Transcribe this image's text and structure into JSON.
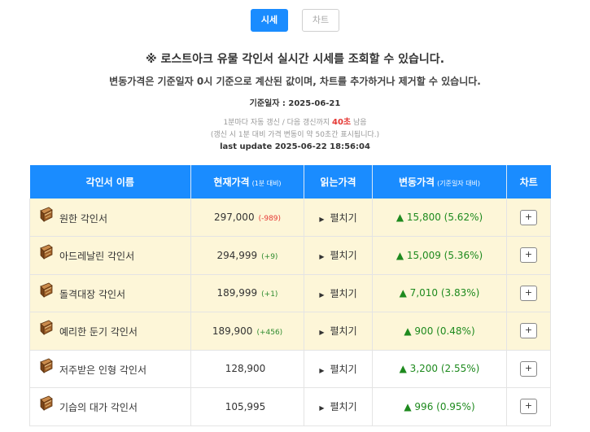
{
  "tabs": [
    {
      "label": "시세",
      "active": true
    },
    {
      "label": "차트",
      "active": false
    }
  ],
  "headline": "※ 로스트아크 유물 각인서 실시간 시세를 조회할 수 있습니다.",
  "subline": "변동가격은 기준일자 0시 기준으로 계산된 값이며, 차트를 추가하거나 제거할 수 있습니다.",
  "ref_date": "기준일자 : 2025-06-21",
  "refresh": {
    "prefix": "1분마다 자동 갱신 / 다음 갱신까지 ",
    "countdown": "40초",
    "suffix": " 남음",
    "note": "(갱신 시 1분 대비 가격 변동이 약 50초간 표시됩니다.)",
    "last_update": "last update 2025-06-22 18:56:04"
  },
  "table": {
    "headers": {
      "name": "각인서 이름",
      "current": "현재가격",
      "current_sub": "(1분 대비)",
      "read": "읽는가격",
      "change": "변동가격",
      "change_sub": "(기준일자 대비)",
      "chart": "차트"
    },
    "read_label": "펼치기",
    "chart_button": "+",
    "rows": [
      {
        "name": "원한 각인서",
        "price": "297,000",
        "delta": "(-989)",
        "delta_dir": "down",
        "change": "▲ 15,800 (5.62%)",
        "highlight": true
      },
      {
        "name": "아드레날린 각인서",
        "price": "294,999",
        "delta": "(+9)",
        "delta_dir": "up",
        "change": "▲ 15,009 (5.36%)",
        "highlight": true
      },
      {
        "name": "돌격대장 각인서",
        "price": "189,999",
        "delta": "(+1)",
        "delta_dir": "up",
        "change": "▲ 7,010 (3.83%)",
        "highlight": true
      },
      {
        "name": "예리한 둔기 각인서",
        "price": "189,900",
        "delta": "(+456)",
        "delta_dir": "up",
        "change": "▲ 900 (0.48%)",
        "highlight": true
      },
      {
        "name": "저주받은 인형 각인서",
        "price": "128,900",
        "delta": "",
        "delta_dir": "",
        "change": "▲ 3,200 (2.55%)",
        "highlight": false
      },
      {
        "name": "기습의 대가 각인서",
        "price": "105,995",
        "delta": "",
        "delta_dir": "",
        "change": "▲ 996 (0.95%)",
        "highlight": false
      }
    ]
  },
  "colors": {
    "accent": "#1a8cff",
    "highlight_row": "#fdf6d8",
    "up": "#2e8b2e",
    "down": "#e53935"
  }
}
